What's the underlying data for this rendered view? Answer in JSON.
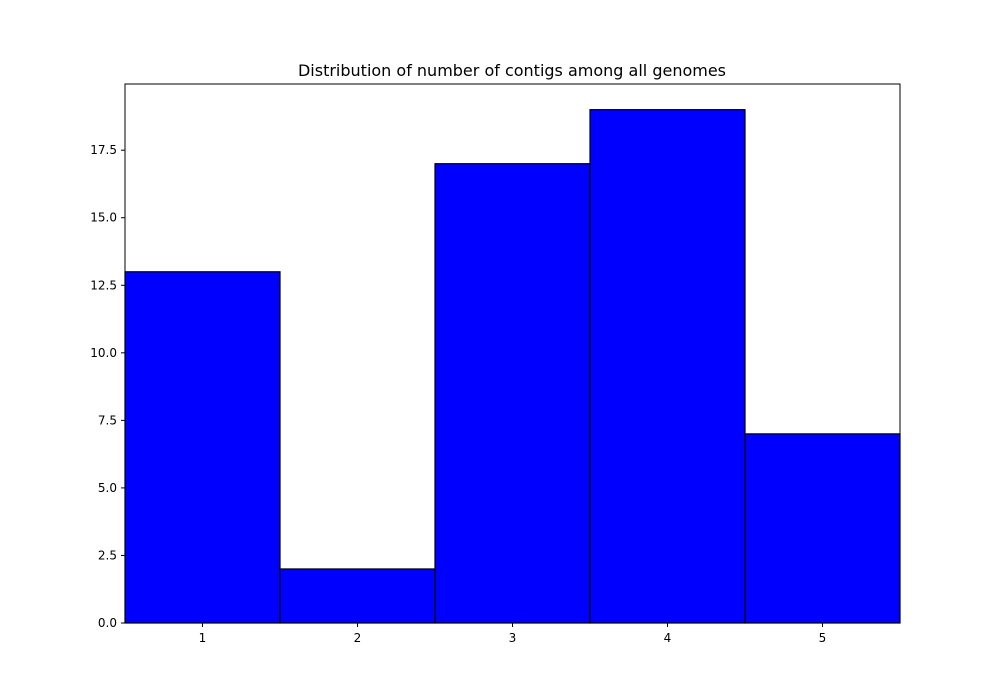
{
  "chart_data": {
    "type": "bar",
    "title": "Distribution of number of contigs among all genomes",
    "xlabel": "",
    "ylabel": "",
    "categories": [
      "1",
      "2",
      "3",
      "4",
      "5"
    ],
    "values": [
      13,
      2,
      17,
      19,
      7
    ],
    "xlim": [
      0.5,
      5.5
    ],
    "ylim": [
      0,
      19.95
    ],
    "y_ticks": [
      "0.0",
      "2.5",
      "5.0",
      "7.5",
      "10.0",
      "12.5",
      "15.0",
      "17.5"
    ],
    "grid": false,
    "bar_color": "#0000ff",
    "edge_color": "#000000"
  }
}
